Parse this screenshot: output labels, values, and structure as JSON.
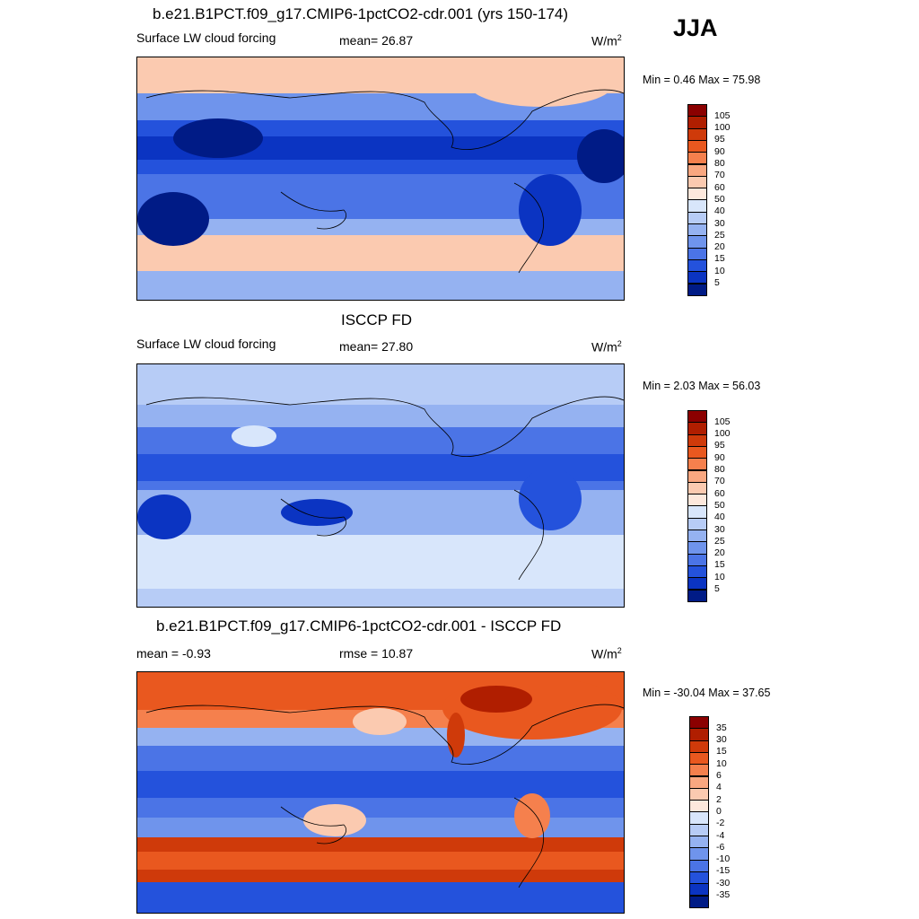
{
  "season": "JJA",
  "units_prefix": "W/m",
  "units_exp": "2",
  "panels": [
    {
      "title": "b.e21.B1PCT.f09_g17.CMIP6-1pctCO2-cdr.001 (yrs 150-174)",
      "left_label": "Surface LW cloud forcing",
      "center_label": "mean=  26.87",
      "minmax": "Min =   0.46 Max =  75.98"
    },
    {
      "title": "ISCCP FD",
      "left_label": "Surface LW cloud forcing",
      "center_label": "mean=  27.80",
      "minmax": "Min =   2.03 Max =  56.03"
    },
    {
      "title": "b.e21.B1PCT.f09_g17.CMIP6-1pctCO2-cdr.001 - ISCCP FD",
      "left_label": "mean =  -0.93",
      "center_label": "rmse =  10.87",
      "minmax": "Min = -30.04 Max =  37.65"
    }
  ],
  "colorbar_abs": {
    "labels": [
      "105",
      "100",
      "95",
      "90",
      "80",
      "70",
      "60",
      "50",
      "40",
      "30",
      "25",
      "20",
      "15",
      "10",
      "5"
    ],
    "colors": [
      "#8b0000",
      "#b01e00",
      "#cf3a0a",
      "#e9581f",
      "#f5804d",
      "#f9a780",
      "#fbcab0",
      "#fde8dc",
      "#d8e6fb",
      "#b7ccf6",
      "#95b2f1",
      "#6f94ec",
      "#4b74e6",
      "#2452dc",
      "#0b34c2",
      "#001b86"
    ]
  },
  "colorbar_diff": {
    "labels": [
      "35",
      "30",
      "15",
      "10",
      "6",
      "4",
      "2",
      "0",
      "-2",
      "-4",
      "-6",
      "-10",
      "-15",
      "-30",
      "-35"
    ],
    "colors": [
      "#8b0000",
      "#b01e00",
      "#cf3a0a",
      "#e9581f",
      "#f5804d",
      "#f9a780",
      "#fbcab0",
      "#fde8dc",
      "#d8e6fb",
      "#b7ccf6",
      "#95b2f1",
      "#6f94ec",
      "#4b74e6",
      "#2452dc",
      "#0b34c2",
      "#001b86"
    ]
  }
}
